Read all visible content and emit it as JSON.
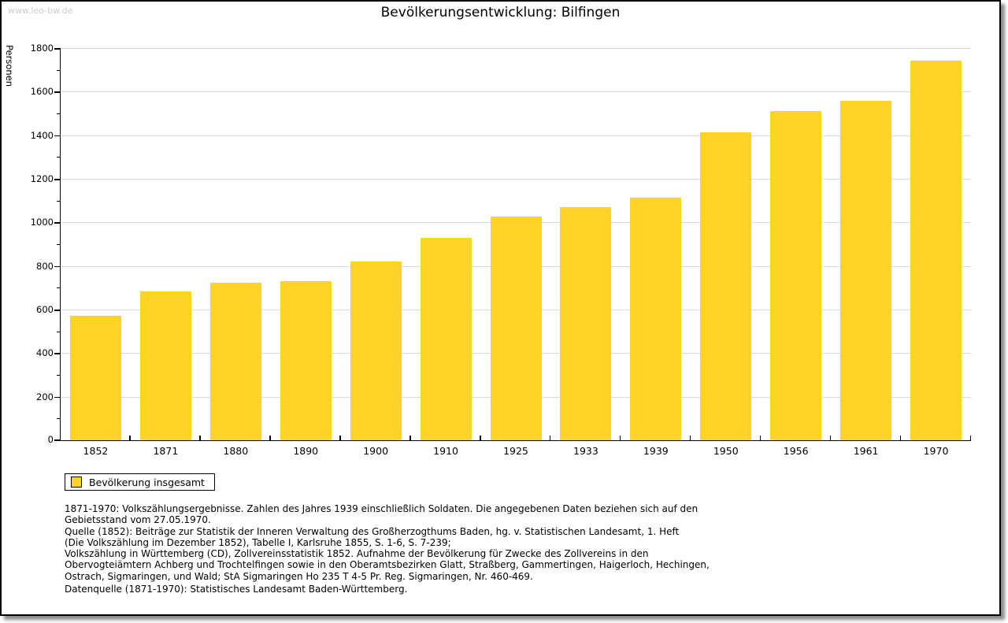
{
  "page": {
    "watermark": "www.leo-bw.de",
    "title": "Bevölkerungsentwicklung: Bilfingen"
  },
  "colors": {
    "bar": "#FDD326",
    "grid": "#DADADA",
    "axis": "#000000",
    "watermark": "#CBCBCB"
  },
  "chart_data": {
    "type": "bar",
    "title": "Bevölkerungsentwicklung: Bilfingen",
    "xlabel": "",
    "ylabel": "Personen",
    "categories": [
      "1852",
      "1871",
      "1880",
      "1890",
      "1900",
      "1910",
      "1925",
      "1933",
      "1939",
      "1950",
      "1956",
      "1961",
      "1970"
    ],
    "series": [
      {
        "name": "Bevölkerung insgesamt",
        "values": [
          570,
          683,
          722,
          729,
          819,
          930,
          1025,
          1070,
          1115,
          1414,
          1510,
          1559,
          1742
        ]
      }
    ],
    "ylim": [
      0,
      1800
    ],
    "ytick_step": 200,
    "yminor_step": 100,
    "grid": true,
    "legend_position": "bottom-left"
  },
  "legend": {
    "label": "Bevölkerung insgesamt"
  },
  "footnotes": {
    "lines": [
      "1871-1970: Volkszählungsergebnisse. Zahlen des Jahres 1939 einschließlich Soldaten. Die angegebenen Daten beziehen sich auf den",
      "Gebietsstand vom 27.05.1970.",
      "Quelle (1852): Beiträge zur Statistik der Inneren Verwaltung des Großherzogthums Baden, hg. v. Statistischen Landesamt, 1. Heft",
      "(Die Volkszählung im Dezember 1852), Tabelle I, Karlsruhe 1855, S. 1-6, S. 7-239;",
      "Volkszählung in Württemberg (CD), Zollvereinsstatistik 1852. Aufnahme der Bevölkerung für Zwecke des Zollvereins in den",
      "Obervogteiämtern Achberg und Trochtelfingen sowie in den Oberamtsbezirken Glatt, Straßberg, Gammertingen, Haigerloch, Hechingen,",
      "Ostrach, Sigmaringen, und Wald; StA Sigmaringen Ho 235 T 4-5 Pr. Reg. Sigmaringen, Nr. 460-469."
    ],
    "datasource": "Datenquelle (1871-1970): Statistisches Landesamt Baden-Württemberg."
  }
}
